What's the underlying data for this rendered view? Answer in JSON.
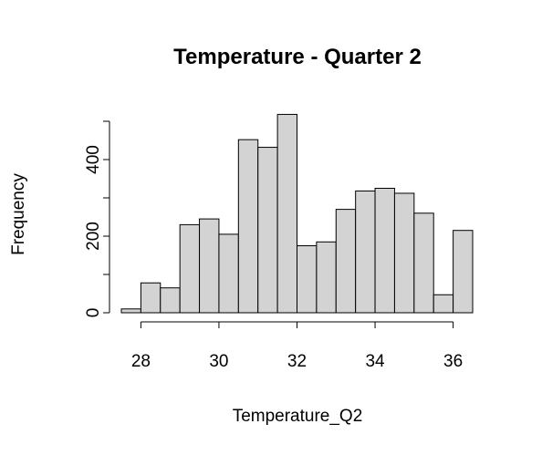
{
  "chart_data": {
    "type": "bar",
    "title": "Temperature - Quarter 2",
    "xlabel": "Temperature_Q2",
    "ylabel": "Frequency",
    "bin_edges": [
      27.5,
      28.0,
      28.5,
      29.0,
      29.5,
      30.0,
      30.5,
      31.0,
      31.5,
      32.0,
      32.5,
      33.0,
      33.5,
      34.0,
      34.5,
      35.0,
      35.5,
      36.0,
      36.5
    ],
    "values": [
      10,
      78,
      65,
      230,
      245,
      205,
      452,
      432,
      518,
      175,
      185,
      270,
      318,
      325,
      312,
      260,
      47,
      215
    ],
    "x_ticks": [
      28,
      30,
      32,
      34,
      36
    ],
    "y_ticks": [
      0,
      200,
      400
    ],
    "y_minor_ticks": [
      0,
      100,
      200,
      300,
      400,
      500
    ],
    "ylim": [
      0,
      518
    ],
    "xlim": [
      27.5,
      36.5
    ],
    "bar_color": "#d3d3d3",
    "edge_color": "#000000",
    "grid": false
  }
}
